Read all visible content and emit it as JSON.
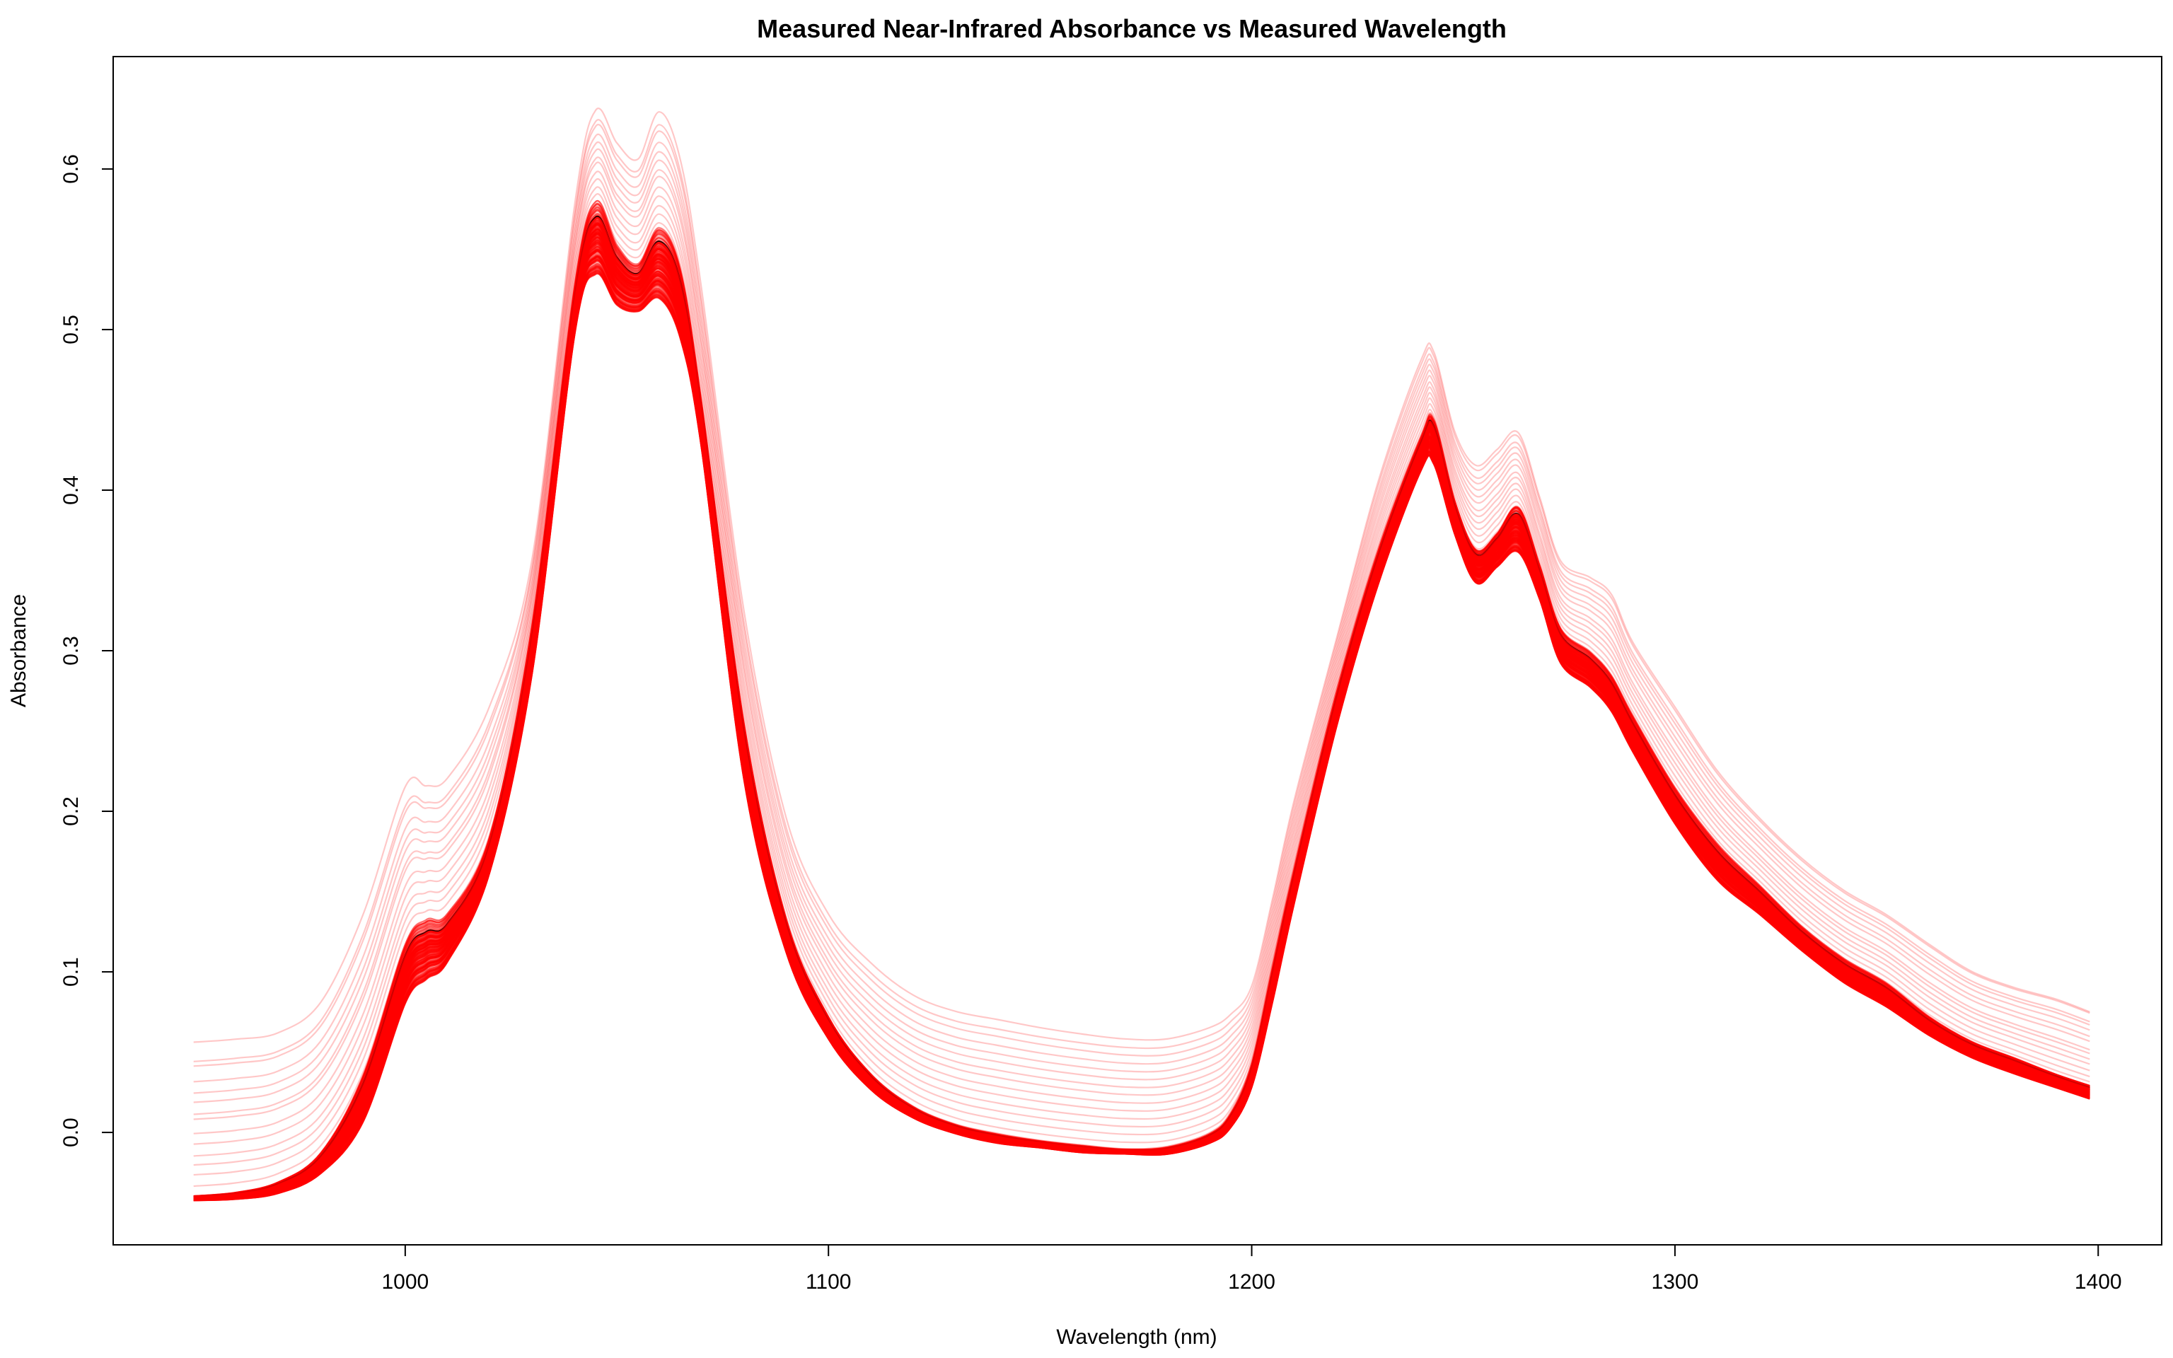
{
  "chart_data": {
    "type": "line",
    "title": "Measured Near-Infrared Absorbance vs Measured Wavelength",
    "xlabel": "Wavelength (nm)",
    "ylabel": "Absorbance",
    "xlim": [
      931,
      1415
    ],
    "ylim": [
      -0.07,
      0.67
    ],
    "x_ticks": [
      1000,
      1100,
      1200,
      1300,
      1400
    ],
    "x_tick_labels": [
      "1000",
      "1100",
      "1200",
      "1300",
      "1400"
    ],
    "y_ticks": [
      0.0,
      0.1,
      0.2,
      0.3,
      0.4,
      0.5,
      0.6
    ],
    "y_tick_labels": [
      "0.0",
      "0.1",
      "0.2",
      "0.3",
      "0.4",
      "0.5",
      "0.6"
    ],
    "grid": false,
    "line_color": "#ff0000",
    "highlight_color": "#000000",
    "wavelength": [
      950,
      960,
      970,
      980,
      990,
      1000,
      1005,
      1010,
      1020,
      1030,
      1040,
      1045,
      1050,
      1055,
      1060,
      1065,
      1070,
      1080,
      1090,
      1100,
      1110,
      1120,
      1130,
      1140,
      1150,
      1160,
      1170,
      1180,
      1190,
      1195,
      1200,
      1205,
      1210,
      1220,
      1230,
      1240,
      1243,
      1248,
      1253,
      1258,
      1263,
      1268,
      1273,
      1280,
      1285,
      1290,
      1300,
      1310,
      1320,
      1330,
      1340,
      1350,
      1360,
      1370,
      1380,
      1390,
      1398
    ],
    "representative_spectrum": [
      -0.04,
      -0.038,
      -0.032,
      -0.015,
      0.03,
      0.11,
      0.125,
      0.13,
      0.18,
      0.31,
      0.52,
      0.57,
      0.545,
      0.535,
      0.555,
      0.53,
      0.45,
      0.25,
      0.13,
      0.07,
      0.035,
      0.015,
      0.004,
      -0.002,
      -0.006,
      -0.009,
      -0.011,
      -0.01,
      -0.002,
      0.01,
      0.04,
      0.1,
      0.16,
      0.27,
      0.36,
      0.43,
      0.44,
      0.39,
      0.36,
      0.37,
      0.385,
      0.35,
      0.31,
      0.295,
      0.28,
      0.255,
      0.21,
      0.175,
      0.15,
      0.125,
      0.105,
      0.09,
      0.07,
      0.055,
      0.045,
      0.035,
      0.028
    ],
    "envelope_low": [
      -0.042,
      -0.041,
      -0.037,
      -0.024,
      0.01,
      0.085,
      0.1,
      0.11,
      0.165,
      0.29,
      0.5,
      0.54,
      0.52,
      0.515,
      0.525,
      0.5,
      0.43,
      0.225,
      0.115,
      0.06,
      0.028,
      0.01,
      0.0,
      -0.006,
      -0.009,
      -0.012,
      -0.013,
      -0.013,
      -0.006,
      0.004,
      0.03,
      0.085,
      0.145,
      0.255,
      0.345,
      0.415,
      0.42,
      0.375,
      0.345,
      0.355,
      0.365,
      0.335,
      0.295,
      0.28,
      0.265,
      0.24,
      0.195,
      0.16,
      0.138,
      0.115,
      0.095,
      0.08,
      0.062,
      0.048,
      0.038,
      0.029,
      0.022
    ],
    "envelope_high": [
      0.06,
      0.062,
      0.066,
      0.085,
      0.14,
      0.22,
      0.22,
      0.225,
      0.27,
      0.36,
      0.58,
      0.64,
      0.62,
      0.61,
      0.64,
      0.61,
      0.53,
      0.33,
      0.2,
      0.14,
      0.11,
      0.09,
      0.08,
      0.075,
      0.07,
      0.066,
      0.063,
      0.063,
      0.07,
      0.078,
      0.095,
      0.15,
      0.21,
      0.31,
      0.41,
      0.485,
      0.49,
      0.44,
      0.42,
      0.43,
      0.44,
      0.4,
      0.36,
      0.35,
      0.34,
      0.31,
      0.27,
      0.23,
      0.2,
      0.175,
      0.155,
      0.14,
      0.122,
      0.105,
      0.095,
      0.088,
      0.08
    ],
    "samples": 215
  }
}
